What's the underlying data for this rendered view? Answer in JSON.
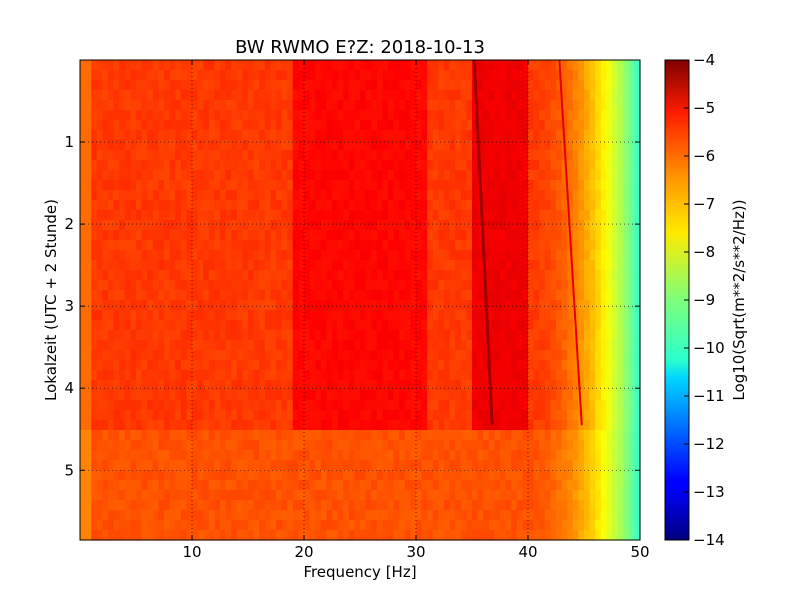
{
  "chart_data": {
    "type": "heatmap",
    "title": "BW RWMO E?Z: 2018-10-13",
    "xlabel": "Frequency [Hz]",
    "ylabel": "Lokalzeit (UTC + 2 Stunde)",
    "xlim": [
      0,
      50
    ],
    "ylim": [
      5.85,
      0
    ],
    "x_ticks": [
      10,
      20,
      30,
      40,
      50
    ],
    "y_ticks": [
      1,
      2,
      3,
      4,
      5
    ],
    "grid": true,
    "colormap": "jet",
    "colorbar": {
      "label": "Log10(Sqrt(m**2/s**2/Hz))",
      "min": -14,
      "max": -4,
      "ticks": [
        -4,
        -5,
        -6,
        -7,
        -8,
        -9,
        -10,
        -11,
        -12,
        -13,
        -14
      ]
    },
    "features": [
      {
        "name": "background level",
        "value": -5.8
      },
      {
        "name": "enhanced band 19-31 Hz",
        "x_range": [
          19,
          31
        ],
        "value": -5.3
      },
      {
        "name": "enhanced band 35-40 Hz",
        "x_range": [
          35,
          40
        ],
        "value": -5.1
      },
      {
        "name": "drifting line",
        "x_start": 35.2,
        "x_end": 36.8,
        "y_range": [
          0,
          4.45
        ],
        "value": -4.3
      },
      {
        "name": "faint drifting line",
        "x_start": 42.8,
        "x_end": 44.8,
        "y_range": [
          0,
          4.45
        ],
        "value": -5.0
      },
      {
        "name": "roll-off above 40 Hz",
        "x_range": [
          40,
          50
        ],
        "value_at_50": -9.8
      },
      {
        "name": "level change",
        "y": 4.45
      }
    ]
  }
}
